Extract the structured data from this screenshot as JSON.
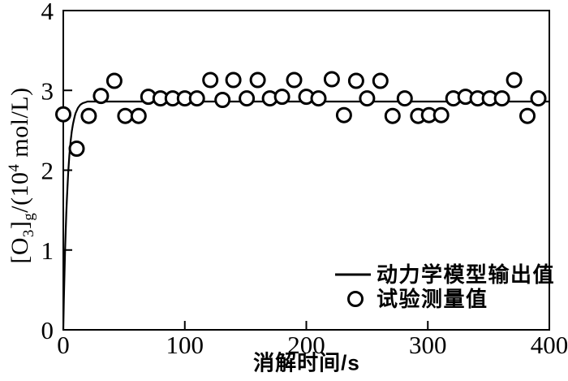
{
  "colors": {
    "ink": "#000000",
    "background": "#ffffff"
  },
  "chart_data": {
    "type": "line+scatter",
    "title": "",
    "xlabel": "消解时间/s",
    "ylabel_plain": "[O3]g/(10^4 mol/L)",
    "ylabel_parts": [
      {
        "t": "[O",
        "s": "n"
      },
      {
        "t": "3",
        "s": "sub"
      },
      {
        "t": "]",
        "s": "n"
      },
      {
        "t": "g",
        "s": "sub"
      },
      {
        "t": "/(10",
        "s": "n"
      },
      {
        "t": "4",
        "s": "sup"
      },
      {
        "t": " mol/L)",
        "s": "n"
      }
    ],
    "xlim": [
      0,
      400
    ],
    "ylim": [
      0,
      4
    ],
    "xticks": [
      0,
      100,
      200,
      300,
      400
    ],
    "yticks": [
      0,
      1,
      2,
      3,
      4
    ],
    "grid": false,
    "legend_position": "inside-bottom-right",
    "series": [
      {
        "name": "动力学模型输出值",
        "type": "line",
        "marker": "line",
        "points": [
          [
            0,
            0
          ],
          [
            0.5,
            0.38
          ],
          [
            1,
            0.71
          ],
          [
            1.5,
            1.0
          ],
          [
            2,
            1.25
          ],
          [
            2.5,
            1.46
          ],
          [
            3,
            1.65
          ],
          [
            4,
            1.96
          ],
          [
            5,
            2.19
          ],
          [
            6,
            2.36
          ],
          [
            7,
            2.49
          ],
          [
            8,
            2.58
          ],
          [
            9,
            2.65
          ],
          [
            10,
            2.71
          ],
          [
            12,
            2.78
          ],
          [
            14,
            2.82
          ],
          [
            16,
            2.84
          ],
          [
            18,
            2.85
          ],
          [
            20,
            2.86
          ],
          [
            25,
            2.86
          ],
          [
            30,
            2.86
          ],
          [
            400,
            2.86
          ]
        ]
      },
      {
        "name": "试验测量值",
        "type": "scatter",
        "marker": "circle",
        "points": [
          [
            0,
            2.7
          ],
          [
            11,
            2.27
          ],
          [
            21,
            2.68
          ],
          [
            31,
            2.93
          ],
          [
            42,
            3.12
          ],
          [
            51,
            2.68
          ],
          [
            62,
            2.68
          ],
          [
            70,
            2.92
          ],
          [
            80,
            2.9
          ],
          [
            90,
            2.9
          ],
          [
            100,
            2.9
          ],
          [
            110,
            2.9
          ],
          [
            121,
            3.13
          ],
          [
            131,
            2.88
          ],
          [
            140,
            3.13
          ],
          [
            151,
            2.9
          ],
          [
            160,
            3.13
          ],
          [
            170,
            2.9
          ],
          [
            180,
            2.92
          ],
          [
            190,
            3.13
          ],
          [
            200,
            2.92
          ],
          [
            210,
            2.9
          ],
          [
            221,
            3.14
          ],
          [
            231,
            2.69
          ],
          [
            241,
            3.12
          ],
          [
            250,
            2.9
          ],
          [
            261,
            3.12
          ],
          [
            271,
            2.68
          ],
          [
            281,
            2.9
          ],
          [
            292,
            2.68
          ],
          [
            301,
            2.69
          ],
          [
            311,
            2.69
          ],
          [
            321,
            2.9
          ],
          [
            331,
            2.92
          ],
          [
            341,
            2.9
          ],
          [
            351,
            2.9
          ],
          [
            361,
            2.9
          ],
          [
            371,
            3.13
          ],
          [
            382,
            2.68
          ],
          [
            391,
            2.9
          ]
        ]
      }
    ]
  }
}
